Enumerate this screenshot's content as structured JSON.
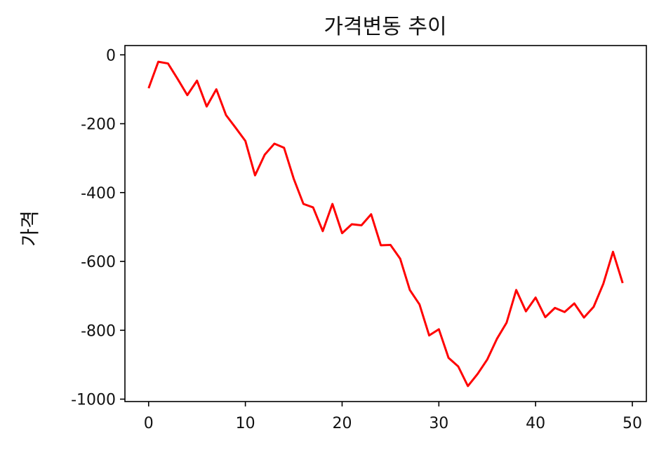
{
  "chart_data": {
    "type": "line",
    "title": "가격변동 추이",
    "xlabel": "",
    "ylabel": "가격",
    "x": [
      0,
      1,
      2,
      3,
      4,
      5,
      6,
      7,
      8,
      9,
      10,
      11,
      12,
      13,
      14,
      15,
      16,
      17,
      18,
      19,
      20,
      21,
      22,
      23,
      24,
      25,
      26,
      27,
      28,
      29,
      30,
      31,
      32,
      33,
      34,
      35,
      36,
      37,
      38,
      39,
      40,
      41,
      42,
      43,
      44,
      45,
      46,
      47,
      48,
      49
    ],
    "series": [
      {
        "color": "#ff0000",
        "values": [
          -97,
          -20,
          -25,
          -70,
          -117,
          -75,
          -150,
          -100,
          -175,
          -212,
          -250,
          -350,
          -290,
          -258,
          -270,
          -360,
          -433,
          -443,
          -512,
          -433,
          -518,
          -492,
          -495,
          -463,
          -553,
          -552,
          -592,
          -683,
          -725,
          -815,
          -797,
          -880,
          -905,
          -962,
          -927,
          -885,
          -825,
          -778,
          -683,
          -745,
          -705,
          -762,
          -735,
          -747,
          -722,
          -763,
          -732,
          -665,
          -572,
          -663
        ]
      }
    ],
    "xlim": [
      -2.45,
      51.45
    ],
    "ylim": [
      -1007,
      27
    ],
    "xticks": [
      0,
      10,
      20,
      30,
      40,
      50
    ],
    "yticks": [
      0,
      -200,
      -400,
      -600,
      -800,
      -1000
    ],
    "xtick_labels": [
      "0",
      "10",
      "20",
      "30",
      "40",
      "50"
    ],
    "ytick_labels": [
      "0",
      "-200",
      "-400",
      "-600",
      "-800",
      "-1000"
    ],
    "grid": false,
    "legend": "none"
  }
}
